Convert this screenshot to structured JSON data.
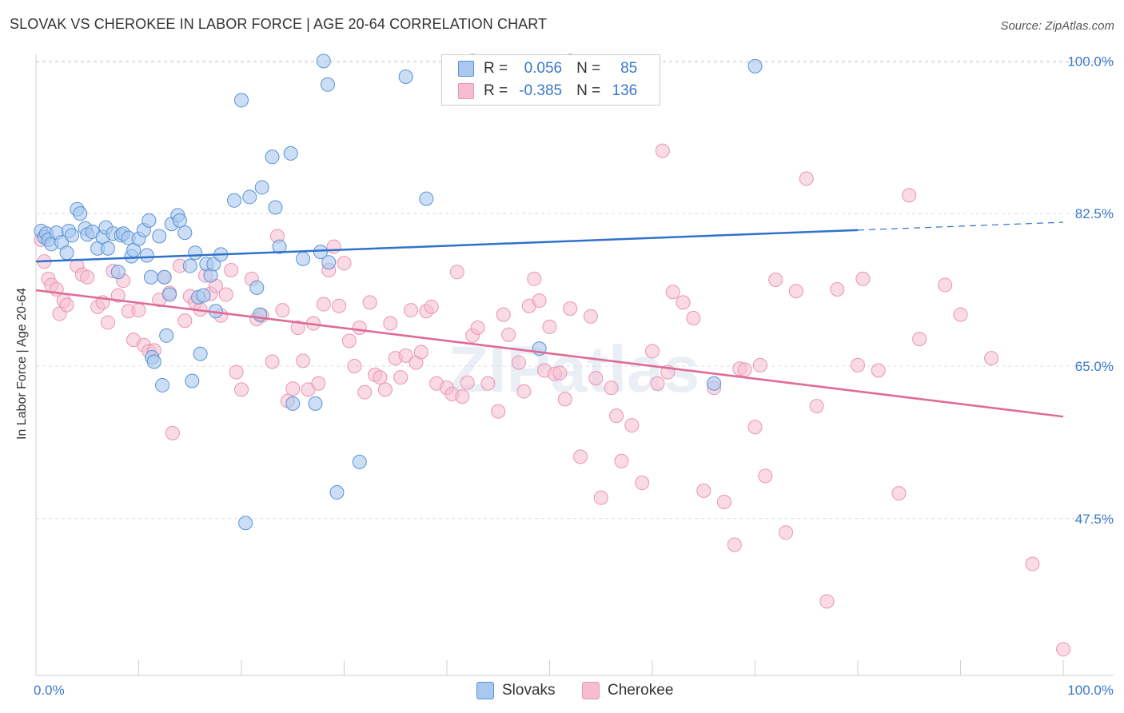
{
  "title": "SLOVAK VS CHEROKEE IN LABOR FORCE | AGE 20-64 CORRELATION CHART",
  "source": "Source: ZipAtlas.com",
  "watermark": "ZIPatlas",
  "colors": {
    "slovaks_fill": "#a8c8ee",
    "slovaks_stroke": "#5b93d6",
    "slovaks_line": "#2f72cc",
    "cherokee_fill": "#f6bdd0",
    "cherokee_stroke": "#e995b2",
    "cherokee_line": "#e06a98",
    "axis_text": "#3a78c9"
  },
  "legend": {
    "r_label": "R =",
    "n_label": "N =",
    "rows": [
      {
        "r": "0.056",
        "n": "85"
      },
      {
        "r": "-0.385",
        "n": "136"
      }
    ]
  },
  "bottom_legend": [
    "Slovaks",
    "Cherokee"
  ],
  "chart_data": {
    "type": "scatter",
    "title": "SLOVAK VS CHEROKEE IN LABOR FORCE | AGE 20-64 CORRELATION CHART",
    "ylabel": "In Labor Force | Age 20-64",
    "xlabel": "",
    "xlim": [
      0,
      100
    ],
    "ylim": [
      29.5,
      101.5
    ],
    "x_tick_labels": [
      "0.0%",
      "100.0%"
    ],
    "y_ticks": [
      47.5,
      65.0,
      82.5,
      100.0
    ],
    "y_tick_labels": [
      "47.5%",
      "65.0%",
      "82.5%",
      "100.0%"
    ],
    "grid": "horizontal dashed",
    "series": [
      {
        "name": "Slovaks",
        "trend": {
          "x0": 0,
          "y0": 77.0,
          "x1": 80,
          "y1": 80.6,
          "dashed_to_x": 100,
          "dashed_to_y": 81.5
        },
        "points": [
          [
            0.5,
            80.5
          ],
          [
            0.8,
            79.8
          ],
          [
            1.0,
            80.2
          ],
          [
            1.2,
            79.5
          ],
          [
            1.5,
            79.0
          ],
          [
            2.0,
            80.3
          ],
          [
            2.5,
            79.2
          ],
          [
            3.0,
            78.0
          ],
          [
            3.2,
            80.5
          ],
          [
            3.5,
            80.0
          ],
          [
            4.0,
            83.0
          ],
          [
            4.3,
            82.5
          ],
          [
            4.8,
            80.8
          ],
          [
            5.0,
            80.1
          ],
          [
            5.5,
            80.4
          ],
          [
            6.0,
            78.5
          ],
          [
            6.5,
            79.8
          ],
          [
            6.8,
            80.9
          ],
          [
            7.0,
            78.5
          ],
          [
            7.5,
            80.2
          ],
          [
            8.0,
            75.8
          ],
          [
            8.3,
            80.0
          ],
          [
            8.5,
            80.2
          ],
          [
            9.0,
            79.7
          ],
          [
            9.3,
            77.6
          ],
          [
            9.5,
            78.3
          ],
          [
            10.0,
            79.6
          ],
          [
            10.5,
            80.6
          ],
          [
            10.8,
            77.7
          ],
          [
            11.0,
            81.7
          ],
          [
            11.2,
            75.2
          ],
          [
            11.3,
            66.0
          ],
          [
            11.5,
            65.5
          ],
          [
            12.0,
            79.9
          ],
          [
            12.3,
            62.8
          ],
          [
            12.5,
            75.2
          ],
          [
            12.7,
            68.5
          ],
          [
            13.0,
            73.2
          ],
          [
            13.2,
            81.3
          ],
          [
            13.8,
            82.3
          ],
          [
            14.0,
            81.7
          ],
          [
            14.5,
            80.3
          ],
          [
            15.0,
            76.5
          ],
          [
            15.2,
            63.3
          ],
          [
            15.5,
            78.0
          ],
          [
            15.8,
            72.9
          ],
          [
            16.0,
            66.4
          ],
          [
            16.3,
            73.1
          ],
          [
            16.6,
            76.7
          ],
          [
            17.0,
            75.4
          ],
          [
            17.3,
            76.7
          ],
          [
            17.5,
            71.3
          ],
          [
            18.0,
            77.8
          ],
          [
            19.3,
            84.0
          ],
          [
            20.0,
            95.5
          ],
          [
            20.4,
            47.0
          ],
          [
            20.8,
            84.4
          ],
          [
            21.5,
            74.0
          ],
          [
            21.8,
            70.9
          ],
          [
            22.0,
            85.5
          ],
          [
            23.0,
            89.0
          ],
          [
            23.3,
            83.2
          ],
          [
            23.7,
            78.7
          ],
          [
            24.8,
            89.4
          ],
          [
            25.0,
            60.7
          ],
          [
            26.0,
            77.3
          ],
          [
            27.2,
            60.7
          ],
          [
            27.7,
            78.1
          ],
          [
            28.0,
            100.0
          ],
          [
            28.4,
            97.3
          ],
          [
            28.5,
            76.9
          ],
          [
            29.3,
            50.5
          ],
          [
            31.5,
            54.0
          ],
          [
            36.0,
            98.2
          ],
          [
            38.0,
            84.2
          ],
          [
            42.5,
            100.0
          ],
          [
            49.0,
            67.0
          ],
          [
            52.0,
            100.0
          ],
          [
            66.0,
            63.0
          ],
          [
            70.0,
            99.4
          ]
        ]
      },
      {
        "name": "Cherokee",
        "trend": {
          "x0": 0,
          "y0": 73.7,
          "x1": 100,
          "y1": 59.2
        },
        "points": [
          [
            0.5,
            79.5
          ],
          [
            0.8,
            77.0
          ],
          [
            1.2,
            75.0
          ],
          [
            1.5,
            74.3
          ],
          [
            2.0,
            73.8
          ],
          [
            2.3,
            71.0
          ],
          [
            2.7,
            72.5
          ],
          [
            3.0,
            72.0
          ],
          [
            4.0,
            76.5
          ],
          [
            4.5,
            75.5
          ],
          [
            5.0,
            75.2
          ],
          [
            6.0,
            71.8
          ],
          [
            6.5,
            72.3
          ],
          [
            7.0,
            70.0
          ],
          [
            7.5,
            75.9
          ],
          [
            8.0,
            73.1
          ],
          [
            8.5,
            74.8
          ],
          [
            9.0,
            71.3
          ],
          [
            9.5,
            68.0
          ],
          [
            10.0,
            71.4
          ],
          [
            10.5,
            67.4
          ],
          [
            11.0,
            66.7
          ],
          [
            11.5,
            66.8
          ],
          [
            12.0,
            72.6
          ],
          [
            12.5,
            75.2
          ],
          [
            13.0,
            73.4
          ],
          [
            13.3,
            57.3
          ],
          [
            14.0,
            76.5
          ],
          [
            14.5,
            70.2
          ],
          [
            15.0,
            73.0
          ],
          [
            15.5,
            72.3
          ],
          [
            16.0,
            71.5
          ],
          [
            16.5,
            75.4
          ],
          [
            17.0,
            73.3
          ],
          [
            17.5,
            74.2
          ],
          [
            18.0,
            70.8
          ],
          [
            18.5,
            73.2
          ],
          [
            19.0,
            76.0
          ],
          [
            19.5,
            64.3
          ],
          [
            20.0,
            62.3
          ],
          [
            21.0,
            75.0
          ],
          [
            21.5,
            70.4
          ],
          [
            22.0,
            70.8
          ],
          [
            23.0,
            65.5
          ],
          [
            23.5,
            79.9
          ],
          [
            24.0,
            71.4
          ],
          [
            24.5,
            61.0
          ],
          [
            25.0,
            62.4
          ],
          [
            25.5,
            69.4
          ],
          [
            26.0,
            65.6
          ],
          [
            26.5,
            62.3
          ],
          [
            27.0,
            69.9
          ],
          [
            27.5,
            63.0
          ],
          [
            28.0,
            72.1
          ],
          [
            28.5,
            76.0
          ],
          [
            29.0,
            78.7
          ],
          [
            29.5,
            71.9
          ],
          [
            30.0,
            76.8
          ],
          [
            30.5,
            67.9
          ],
          [
            31.0,
            65.0
          ],
          [
            31.5,
            69.4
          ],
          [
            32.0,
            62.0
          ],
          [
            32.5,
            72.3
          ],
          [
            33.0,
            64.0
          ],
          [
            33.5,
            63.7
          ],
          [
            34.0,
            62.3
          ],
          [
            34.5,
            69.9
          ],
          [
            35.0,
            65.9
          ],
          [
            35.5,
            63.7
          ],
          [
            36.0,
            66.2
          ],
          [
            36.5,
            71.4
          ],
          [
            37.0,
            65.4
          ],
          [
            37.5,
            66.6
          ],
          [
            38.0,
            71.3
          ],
          [
            38.5,
            71.8
          ],
          [
            39.0,
            63.0
          ],
          [
            40.0,
            62.5
          ],
          [
            40.5,
            61.8
          ],
          [
            41.0,
            75.8
          ],
          [
            41.5,
            61.5
          ],
          [
            42.0,
            63.1
          ],
          [
            42.5,
            68.5
          ],
          [
            43.0,
            69.4
          ],
          [
            44.0,
            63.0
          ],
          [
            45.0,
            59.8
          ],
          [
            45.5,
            70.9
          ],
          [
            46.0,
            68.6
          ],
          [
            47.0,
            65.4
          ],
          [
            47.5,
            62.1
          ],
          [
            48.0,
            71.9
          ],
          [
            48.5,
            75.0
          ],
          [
            49.0,
            72.5
          ],
          [
            49.5,
            64.5
          ],
          [
            50.0,
            69.5
          ],
          [
            50.5,
            64.1
          ],
          [
            51.0,
            64.2
          ],
          [
            51.5,
            61.2
          ],
          [
            52.0,
            71.6
          ],
          [
            53.0,
            54.6
          ],
          [
            54.0,
            70.7
          ],
          [
            54.5,
            63.6
          ],
          [
            55.0,
            49.9
          ],
          [
            56.0,
            62.5
          ],
          [
            56.5,
            59.3
          ],
          [
            57.0,
            54.1
          ],
          [
            58.0,
            58.2
          ],
          [
            59.0,
            51.6
          ],
          [
            60.0,
            66.7
          ],
          [
            60.5,
            63.0
          ],
          [
            61.0,
            89.7
          ],
          [
            61.5,
            64.3
          ],
          [
            62.0,
            73.5
          ],
          [
            63.0,
            72.3
          ],
          [
            64.0,
            70.5
          ],
          [
            65.0,
            50.7
          ],
          [
            66.0,
            62.5
          ],
          [
            67.0,
            49.4
          ],
          [
            68.0,
            44.5
          ],
          [
            68.5,
            64.7
          ],
          [
            69.0,
            64.6
          ],
          [
            70.0,
            58.0
          ],
          [
            70.5,
            65.1
          ],
          [
            71.0,
            52.4
          ],
          [
            72.0,
            74.9
          ],
          [
            73.0,
            45.9
          ],
          [
            74.0,
            73.6
          ],
          [
            75.0,
            86.5
          ],
          [
            76.0,
            60.4
          ],
          [
            77.0,
            38.0
          ],
          [
            78.0,
            73.8
          ],
          [
            80.0,
            65.1
          ],
          [
            80.5,
            75.0
          ],
          [
            82.0,
            64.5
          ],
          [
            84.0,
            50.4
          ],
          [
            85.0,
            84.6
          ],
          [
            86.0,
            68.1
          ],
          [
            88.5,
            74.3
          ],
          [
            90.0,
            70.9
          ],
          [
            93.0,
            65.9
          ],
          [
            97.0,
            42.3
          ],
          [
            100.0,
            32.5
          ]
        ]
      }
    ]
  }
}
